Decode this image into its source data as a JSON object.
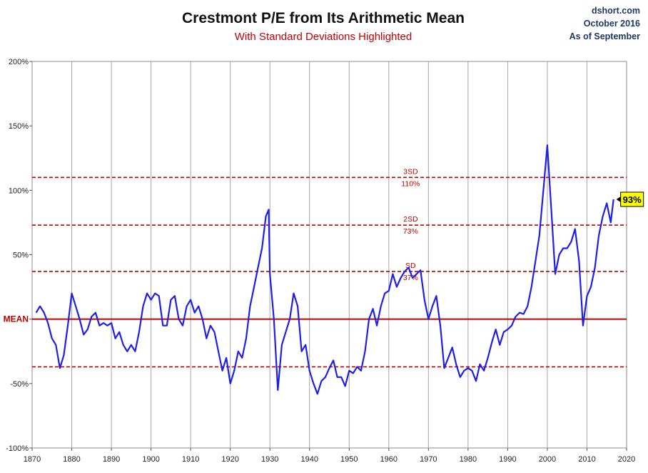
{
  "source": {
    "site": "dshort.com",
    "date": "October 2016",
    "as_of": "As of September"
  },
  "colors": {
    "series": "#1f1fe6",
    "reference": "#c00000",
    "grid": "#a6a6a6",
    "callout_bg": "#ffff00"
  },
  "chart_data": {
    "type": "line",
    "title": "Crestmont P/E from Its Arithmetic Mean",
    "subtitle": "With Standard Deviations Highlighted",
    "xlim": [
      1870,
      2020
    ],
    "ylim": [
      -100,
      200
    ],
    "x_ticks": [
      1870,
      1880,
      1890,
      1900,
      1910,
      1920,
      1930,
      1940,
      1950,
      1960,
      1970,
      1980,
      1990,
      2000,
      2010,
      2020
    ],
    "x_tick_labels": [
      "1870",
      "1880",
      "1890",
      "1900",
      "1910",
      "1920",
      "1930",
      "1940",
      "1950",
      "1960",
      "1970",
      "1980",
      "1990",
      "2000",
      "2010",
      "2020"
    ],
    "y_ticks": [
      -100,
      -50,
      0,
      50,
      100,
      150,
      200
    ],
    "y_tick_labels": [
      "-100%",
      "-50%",
      "MEAN",
      "50%",
      "100%",
      "150%",
      "200%"
    ],
    "grid": "vertical",
    "reference_lines": [
      {
        "value": 110,
        "style": "dashed",
        "label_top": "3SD",
        "label_bottom": "110%"
      },
      {
        "value": 73,
        "style": "dashed",
        "label_top": "2SD",
        "label_bottom": "73%"
      },
      {
        "value": 37,
        "style": "dashed",
        "label_top": "SD",
        "label_bottom": "37%"
      },
      {
        "value": 0,
        "style": "solid",
        "label_top": "",
        "label_bottom": ""
      },
      {
        "value": -37,
        "style": "dashed",
        "label_top": "",
        "label_bottom": ""
      }
    ],
    "callout": {
      "text": "93%",
      "x": 2016.7,
      "y": 93
    },
    "series": [
      {
        "x": [
          1871,
          1872,
          1873,
          1874,
          1875,
          1876,
          1877,
          1878,
          1879,
          1880,
          1881,
          1882,
          1883,
          1884,
          1885,
          1886,
          1887,
          1888,
          1889,
          1890,
          1891,
          1892,
          1893,
          1894,
          1895,
          1896,
          1897,
          1898,
          1899,
          1900,
          1901,
          1902,
          1903,
          1904,
          1905,
          1906,
          1907,
          1908,
          1909,
          1910,
          1911,
          1912,
          1913,
          1914,
          1915,
          1916,
          1917,
          1918,
          1919,
          1920,
          1921,
          1922,
          1923,
          1924,
          1925,
          1926,
          1927,
          1928,
          1929,
          1929.7,
          1930,
          1931,
          1932,
          1933,
          1934,
          1935,
          1936,
          1937,
          1938,
          1939,
          1940,
          1941,
          1942,
          1943,
          1944,
          1945,
          1946,
          1947,
          1948,
          1949,
          1950,
          1951,
          1952,
          1953,
          1954,
          1955,
          1956,
          1957,
          1958,
          1959,
          1960,
          1961,
          1962,
          1963,
          1964,
          1965,
          1966,
          1967,
          1968,
          1969,
          1970,
          1971,
          1972,
          1973,
          1974,
          1975,
          1976,
          1977,
          1978,
          1979,
          1980,
          1981,
          1982,
          1983,
          1984,
          1985,
          1986,
          1987,
          1988,
          1989,
          1990,
          1991,
          1992,
          1993,
          1994,
          1995,
          1996,
          1997,
          1998,
          1999,
          2000,
          2001,
          2002,
          2003,
          2004,
          2005,
          2006,
          2007,
          2008,
          2009,
          2010,
          2011,
          2012,
          2013,
          2014,
          2015,
          2016,
          2016.7
        ],
        "values": [
          5,
          10,
          5,
          -3,
          -15,
          -20,
          -38,
          -28,
          -5,
          20,
          10,
          0,
          -12,
          -8,
          2,
          5,
          -5,
          -3,
          -5,
          -3,
          -15,
          -10,
          -20,
          -25,
          -20,
          -25,
          -10,
          10,
          20,
          15,
          20,
          18,
          -5,
          -5,
          15,
          18,
          0,
          -5,
          10,
          15,
          5,
          10,
          0,
          -15,
          -5,
          -10,
          -25,
          -40,
          -30,
          -50,
          -40,
          -25,
          -30,
          -15,
          10,
          25,
          40,
          55,
          80,
          85,
          35,
          0,
          -55,
          -20,
          -10,
          0,
          20,
          10,
          -25,
          -20,
          -40,
          -50,
          -58,
          -48,
          -45,
          -38,
          -32,
          -45,
          -45,
          -52,
          -40,
          -42,
          -37,
          -40,
          -25,
          0,
          8,
          -5,
          10,
          20,
          22,
          35,
          25,
          32,
          37,
          40,
          32,
          35,
          38,
          15,
          0,
          10,
          18,
          -5,
          -38,
          -30,
          -22,
          -35,
          -45,
          -40,
          -38,
          -40,
          -48,
          -35,
          -40,
          -30,
          -18,
          -8,
          -20,
          -10,
          -8,
          -5,
          2,
          5,
          4,
          10,
          25,
          45,
          65,
          100,
          135,
          85,
          35,
          50,
          55,
          55,
          60,
          70,
          45,
          -5,
          18,
          25,
          40,
          65,
          80,
          90,
          75,
          93
        ]
      }
    ]
  }
}
